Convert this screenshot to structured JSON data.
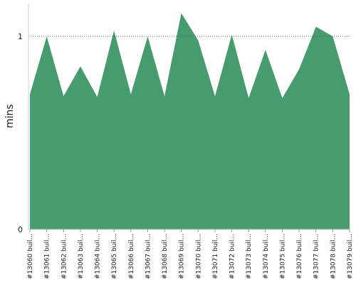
{
  "chart_data": {
    "type": "area",
    "y_label": "mins",
    "categories": [
      "#13060 buil...",
      "#13061 buil...",
      "#13062 buil...",
      "#13063 buil...",
      "#13064 buil...",
      "#13065 buil...",
      "#13066 buil...",
      "#13067 buil...",
      "#13068 buil...",
      "#13069 buil...",
      "#13070 buil...",
      "#13071 buil...",
      "#13072 buil...",
      "#13073 buil...",
      "#13074 buil...",
      "#13075 buil...",
      "#13076 buil...",
      "#13077 buil...",
      "#13078 buil...",
      "#13079 buil..."
    ],
    "values": [
      0.7,
      1.0,
      0.69,
      0.845,
      0.686,
      1.03,
      0.7,
      1.0,
      0.69,
      1.12,
      0.98,
      0.69,
      1.01,
      0.68,
      0.93,
      0.68,
      0.83,
      1.05,
      1.0,
      0.7
    ],
    "color": "#469c6c",
    "ylim": [
      0,
      1.17
    ],
    "yticks": [
      0,
      1
    ],
    "grid": true
  }
}
